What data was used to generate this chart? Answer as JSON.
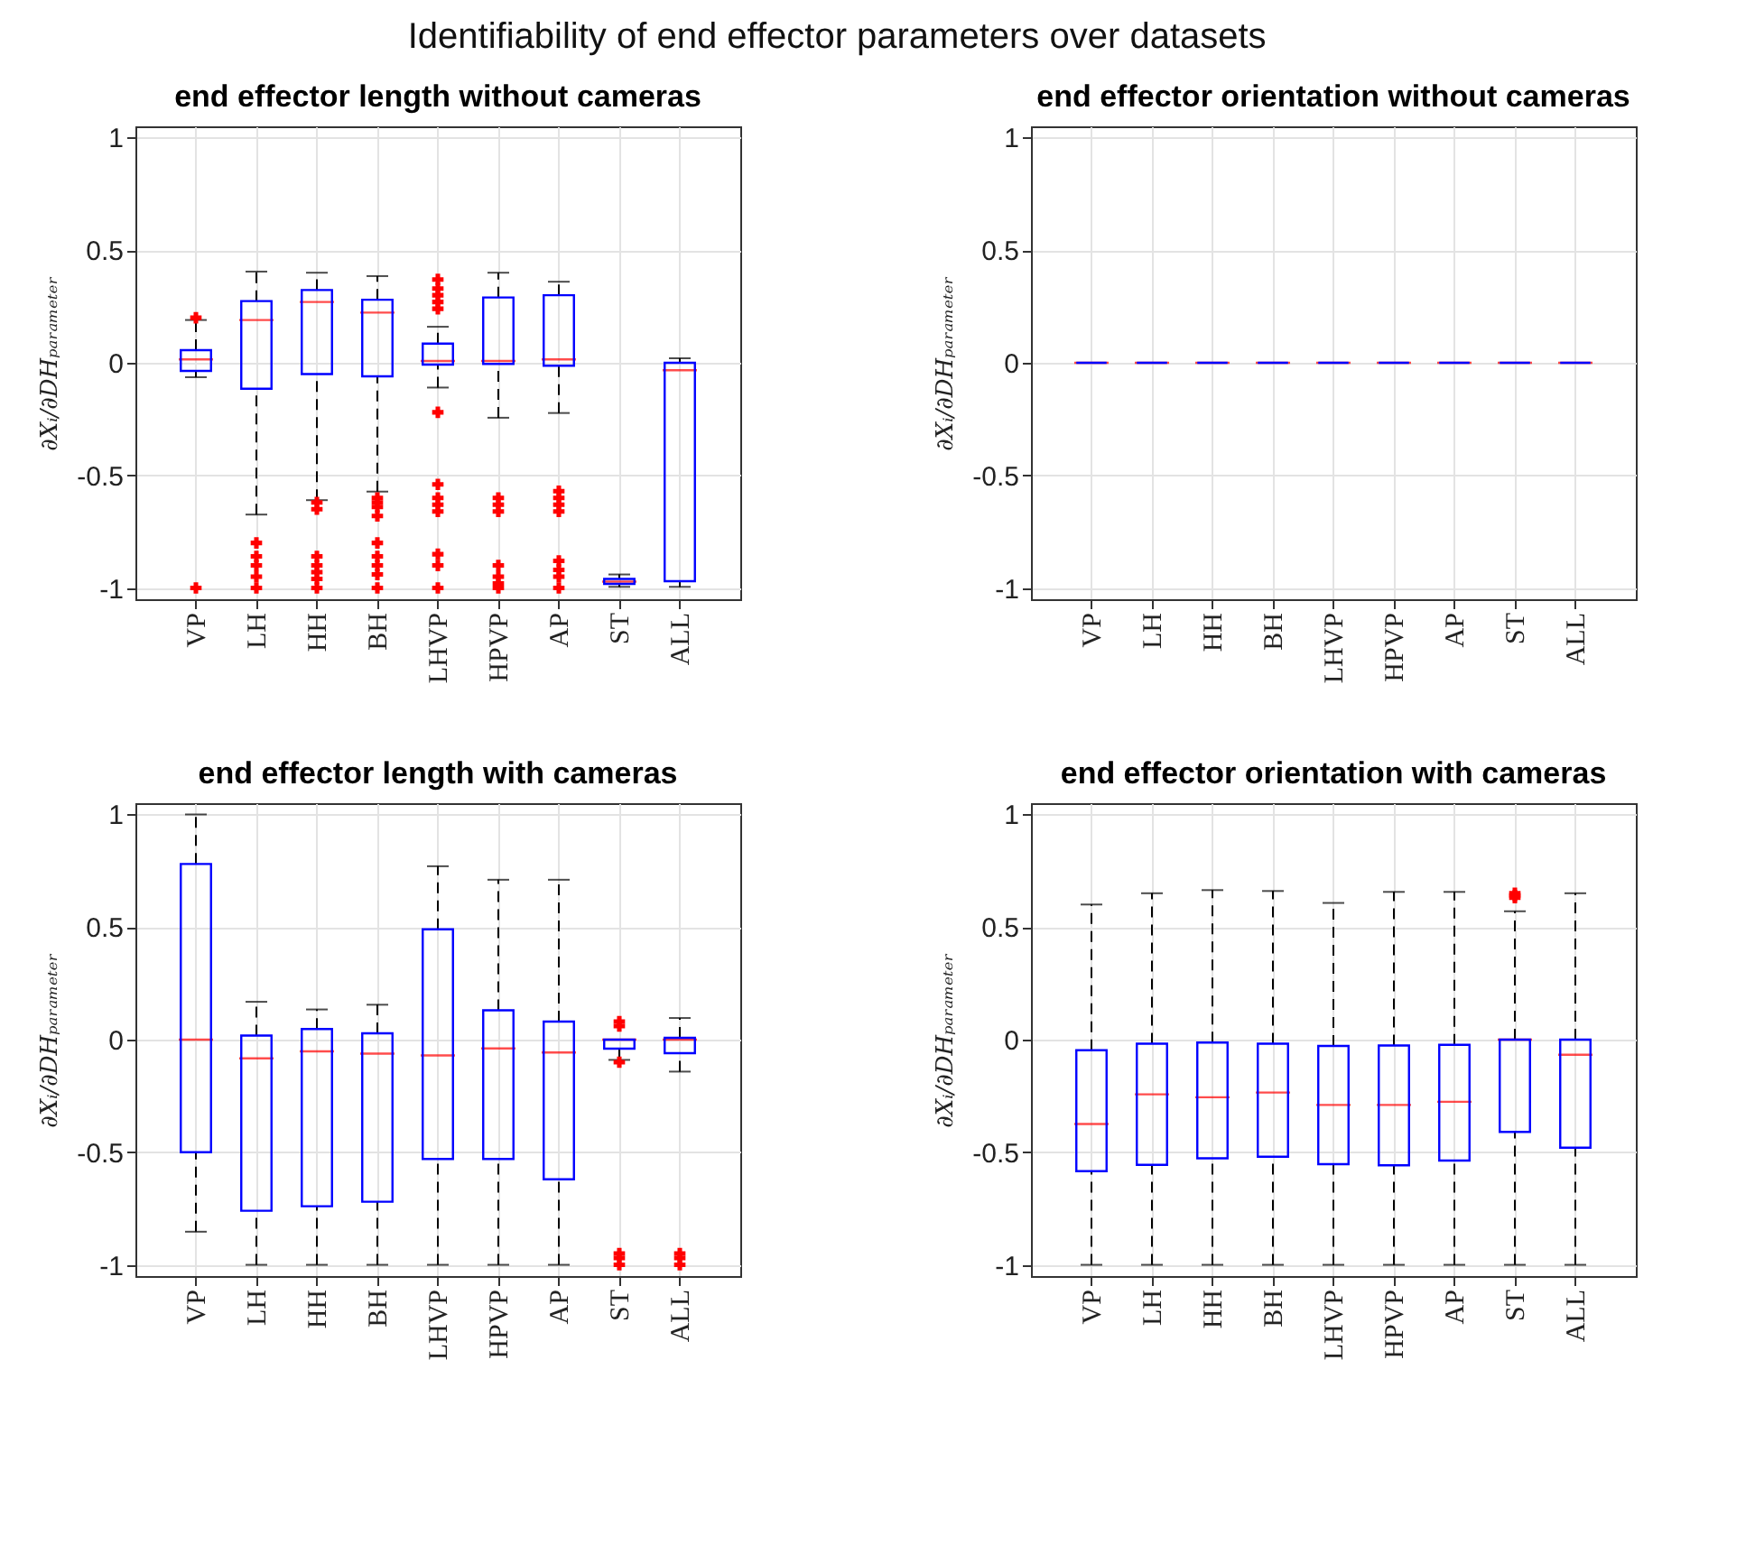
{
  "chart_data": [
    {
      "type": "box",
      "title": "end effector length without cameras",
      "ylabel": "∂Xᵢ/∂DHₚₐᵣₐₘₑₜₑᵣ",
      "annotations": [
        "Identifiability of end effector parameters over datasets"
      ],
      "categories": [
        "VP",
        "LH",
        "HH",
        "BH",
        "LHVP",
        "HPVP",
        "AP",
        "ST",
        "ALL"
      ],
      "ylim": [
        -1.05,
        1.05
      ],
      "yticks": [
        -1,
        -0.5,
        0,
        0.5,
        1
      ],
      "grid": true,
      "marker": "cross",
      "line_style": "dashed",
      "boxes": [
        {
          "low": -0.064,
          "q1": -0.036,
          "median": 0.015,
          "q3": 0.056,
          "high": 0.19,
          "outliers": [
            0.2,
            -1
          ]
        },
        {
          "low": -0.674,
          "q1": -0.115,
          "median": 0.19,
          "q3": 0.274,
          "high": 0.405,
          "outliers": [
            -0.8,
            -0.86,
            -0.9,
            -0.95,
            -1
          ]
        },
        {
          "low": -0.61,
          "q1": -0.05,
          "median": 0.27,
          "q3": 0.323,
          "high": 0.4,
          "outliers": [
            -0.62,
            -0.65,
            -0.86,
            -0.9,
            -0.93,
            -0.96,
            -1
          ]
        },
        {
          "low": -0.572,
          "q1": -0.06,
          "median": 0.223,
          "q3": 0.28,
          "high": 0.385,
          "outliers": [
            -0.6,
            -0.62,
            -0.64,
            -0.68,
            -0.8,
            -0.86,
            -0.9,
            -0.94,
            -1
          ]
        },
        {
          "low": -0.11,
          "q1": -0.008,
          "median": 0.008,
          "q3": 0.085,
          "high": 0.16,
          "outliers": [
            0.37,
            0.33,
            0.3,
            0.27,
            0.24,
            -0.22,
            -0.54,
            -0.6,
            -0.63,
            -0.66,
            -0.85,
            -0.9,
            -1
          ]
        },
        {
          "low": -0.244,
          "q1": -0.005,
          "median": 0.008,
          "q3": 0.29,
          "high": 0.4,
          "outliers": [
            -0.6,
            -0.63,
            -0.66,
            -0.9,
            -0.95,
            -0.98,
            -1
          ]
        },
        {
          "low": -0.223,
          "q1": -0.013,
          "median": 0.015,
          "q3": 0.3,
          "high": 0.36,
          "outliers": [
            -0.57,
            -0.6,
            -0.63,
            -0.66,
            -0.88,
            -0.92,
            -0.95,
            -1
          ]
        },
        {
          "low": -0.995,
          "q1": -0.982,
          "median": -0.972,
          "q3": -0.96,
          "high": -0.94
        },
        {
          "low": -0.995,
          "q1": -0.97,
          "median": -0.033,
          "q3": 0,
          "high": 0.02
        }
      ]
    },
    {
      "type": "box",
      "title": "end effector orientation without cameras",
      "ylabel": "∂Xᵢ/∂DHₚₐᵣₐₘₑₜₑᵣ",
      "categories": [
        "VP",
        "LH",
        "HH",
        "BH",
        "LHVP",
        "HPVP",
        "AP",
        "ST",
        "ALL"
      ],
      "ylim": [
        -1.05,
        1.05
      ],
      "yticks": [
        -1,
        -0.5,
        0,
        0.5,
        1
      ],
      "grid": true,
      "line_style": "dashed",
      "boxes": [
        {
          "low": 0,
          "q1": 0,
          "median": 0,
          "q3": 0,
          "high": 0
        },
        {
          "low": 0,
          "q1": 0,
          "median": 0,
          "q3": 0,
          "high": 0
        },
        {
          "low": 0,
          "q1": 0,
          "median": 0,
          "q3": 0,
          "high": 0
        },
        {
          "low": 0,
          "q1": 0,
          "median": 0,
          "q3": 0,
          "high": 0
        },
        {
          "low": 0,
          "q1": 0,
          "median": 0,
          "q3": 0,
          "high": 0
        },
        {
          "low": 0,
          "q1": 0,
          "median": 0,
          "q3": 0,
          "high": 0
        },
        {
          "low": 0,
          "q1": 0,
          "median": 0,
          "q3": 0,
          "high": 0
        },
        {
          "low": 0,
          "q1": 0,
          "median": 0,
          "q3": 0,
          "high": 0
        },
        {
          "low": 0,
          "q1": 0,
          "median": 0,
          "q3": 0,
          "high": 0
        }
      ]
    },
    {
      "type": "box",
      "title": "end effector length with cameras",
      "ylabel": "∂Xᵢ/∂DHₚₐᵣₐₘₑₜₑᵣ",
      "categories": [
        "VP",
        "LH",
        "HH",
        "BH",
        "LHVP",
        "HPVP",
        "AP",
        "ST",
        "ALL"
      ],
      "ylim": [
        -1.05,
        1.05
      ],
      "yticks": [
        -1,
        -0.5,
        0,
        0.5,
        1
      ],
      "grid": true,
      "marker": "cross",
      "line_style": "dashed",
      "boxes": [
        {
          "low": -0.853,
          "q1": -0.5,
          "median": 0,
          "q3": 0.78,
          "high": 1
        },
        {
          "low": -1,
          "q1": -0.76,
          "median": -0.083,
          "q3": 0.018,
          "high": 0.168
        },
        {
          "low": -1,
          "q1": -0.74,
          "median": -0.052,
          "q3": 0.047,
          "high": 0.134
        },
        {
          "low": -1,
          "q1": -0.72,
          "median": -0.062,
          "q3": 0.028,
          "high": 0.155
        },
        {
          "low": -1,
          "q1": -0.53,
          "median": -0.07,
          "q3": 0.49,
          "high": 0.77
        },
        {
          "low": -1,
          "q1": -0.53,
          "median": -0.039,
          "q3": 0.13,
          "high": 0.71
        },
        {
          "low": -1,
          "q1": -0.62,
          "median": -0.057,
          "q3": 0.08,
          "high": 0.71
        },
        {
          "low": -0.09,
          "q1": -0.04,
          "median": 0,
          "q3": 0,
          "high": 0,
          "outliers": [
            0.08,
            0.06,
            -0.1,
            -0.95,
            -0.97,
            -1
          ]
        },
        {
          "low": -0.142,
          "q1": -0.06,
          "median": 0,
          "q3": 0.008,
          "high": 0.096,
          "outliers": [
            -0.95,
            -0.97,
            -1
          ]
        }
      ]
    },
    {
      "type": "box",
      "title": "end effector orientation with cameras",
      "ylabel": "∂Xᵢ/∂DHₚₐᵣₐₘₑₜₑᵣ",
      "categories": [
        "VP",
        "LH",
        "HH",
        "BH",
        "LHVP",
        "HPVP",
        "AP",
        "ST",
        "ALL"
      ],
      "ylim": [
        -1.05,
        1.05
      ],
      "yticks": [
        -1,
        -0.5,
        0,
        0.5,
        1
      ],
      "grid": true,
      "marker": "cross",
      "line_style": "dashed",
      "boxes": [
        {
          "low": -1,
          "q1": -0.584,
          "median": -0.375,
          "q3": -0.047,
          "high": 0.6
        },
        {
          "low": -1,
          "q1": -0.556,
          "median": -0.243,
          "q3": -0.018,
          "high": 0.65
        },
        {
          "low": -1,
          "q1": -0.527,
          "median": -0.256,
          "q3": -0.013,
          "high": 0.664
        },
        {
          "low": -1,
          "q1": -0.52,
          "median": -0.235,
          "q3": -0.018,
          "high": 0.66
        },
        {
          "low": -1,
          "q1": -0.553,
          "median": -0.29,
          "q3": -0.028,
          "high": 0.607
        },
        {
          "low": -1,
          "q1": -0.558,
          "median": -0.29,
          "q3": -0.026,
          "high": 0.656
        },
        {
          "low": -1,
          "q1": -0.537,
          "median": -0.276,
          "q3": -0.023,
          "high": 0.656
        },
        {
          "low": -1,
          "q1": -0.41,
          "median": 0,
          "q3": 0,
          "high": 0.57,
          "outliers": [
            0.63,
            0.64,
            0.65
          ]
        },
        {
          "low": -1,
          "q1": -0.48,
          "median": -0.067,
          "q3": 0,
          "high": 0.65
        }
      ]
    }
  ]
}
